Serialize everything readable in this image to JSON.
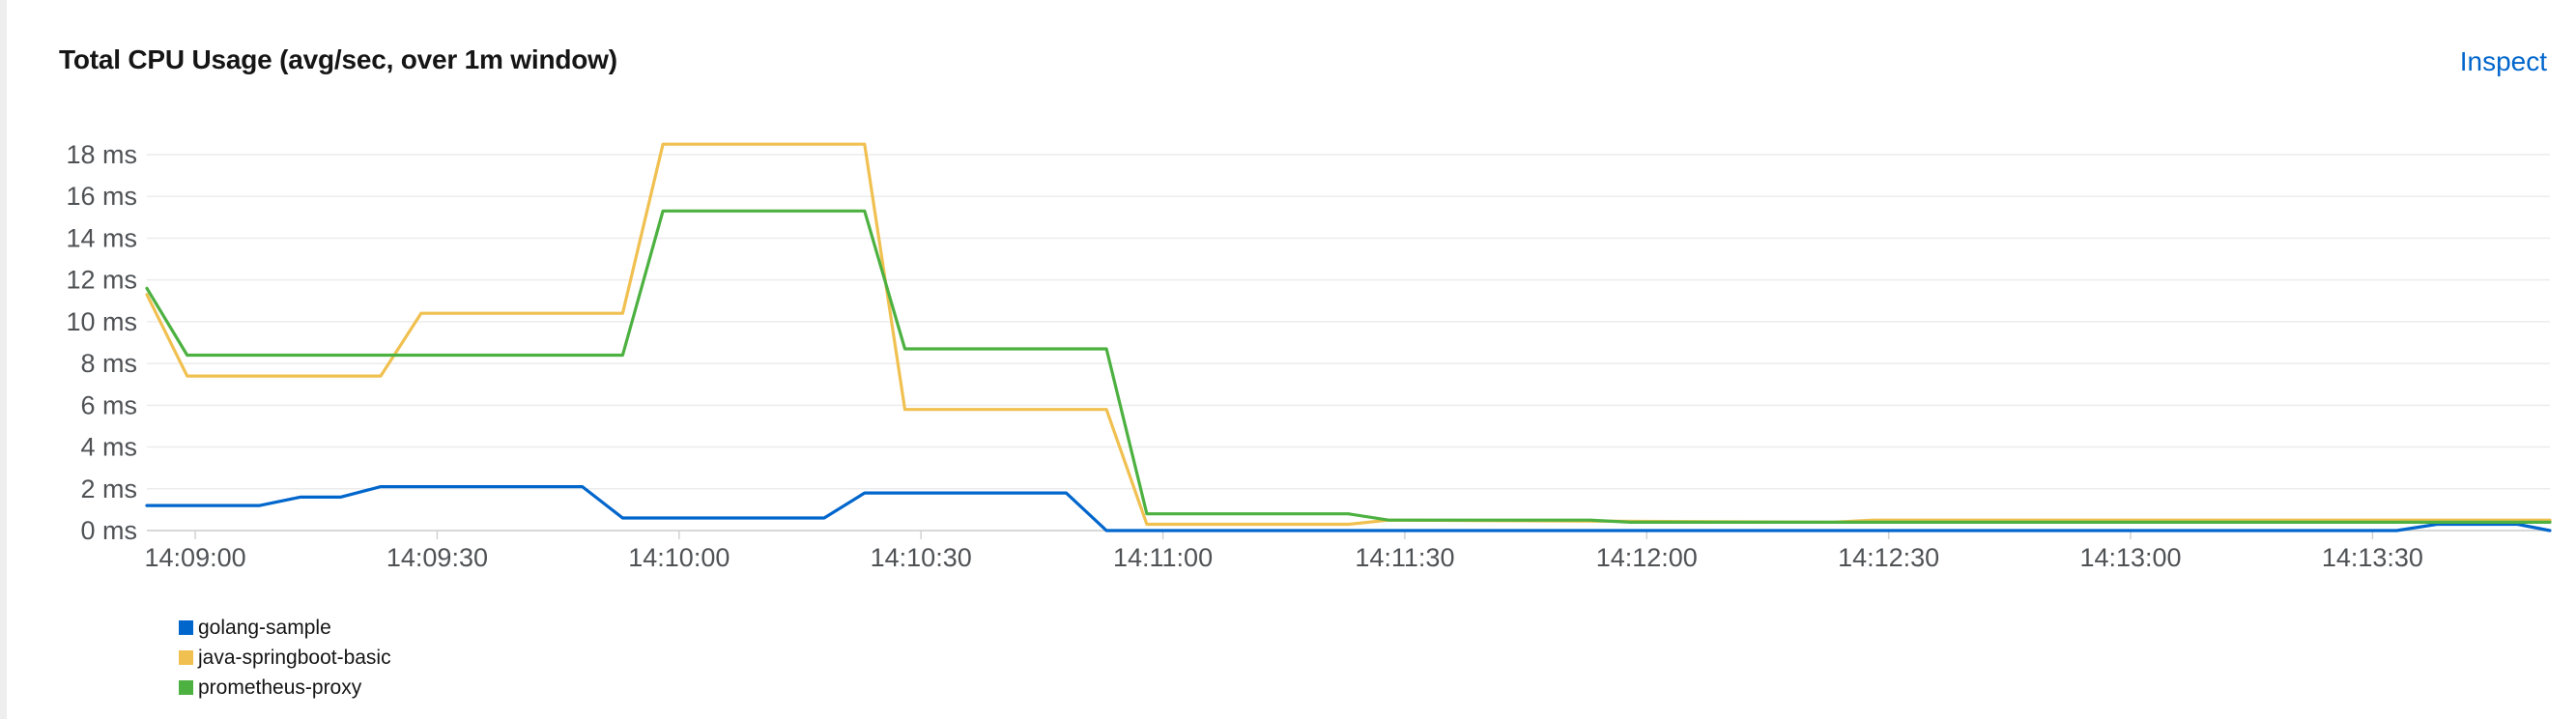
{
  "card": {
    "title": "Total CPU Usage (avg/sec, over 1m window)",
    "inspect_label": "Inspect"
  },
  "chart_data": {
    "type": "line",
    "title": "Total CPU Usage (avg/sec, over 1m window)",
    "xlabel": "",
    "ylabel": "",
    "x_ticks": [
      "14:09:00",
      "14:09:30",
      "14:10:00",
      "14:10:30",
      "14:11:00",
      "14:11:30",
      "14:12:00",
      "14:12:30",
      "14:13:00",
      "14:13:30"
    ],
    "y_ticks": [
      "0 ms",
      "2 ms",
      "4 ms",
      "6 ms",
      "8 ms",
      "10 ms",
      "12 ms",
      "14 ms",
      "16 ms",
      "18 ms"
    ],
    "xlim": [
      "14:08:54",
      "14:13:52"
    ],
    "ylim": [
      0,
      18
    ],
    "grid": true,
    "legend_position": "bottom-left",
    "series": [
      {
        "name": "golang-sample",
        "color": "#06c",
        "points": [
          [
            "14:08:54",
            1.2
          ],
          [
            "14:09:08",
            1.2
          ],
          [
            "14:09:13",
            1.6
          ],
          [
            "14:09:18",
            1.6
          ],
          [
            "14:09:23",
            2.1
          ],
          [
            "14:09:48",
            2.1
          ],
          [
            "14:09:53",
            0.6
          ],
          [
            "14:10:18",
            0.6
          ],
          [
            "14:10:23",
            1.8
          ],
          [
            "14:10:48",
            1.8
          ],
          [
            "14:10:53",
            0.0
          ],
          [
            "14:13:33",
            0.0
          ],
          [
            "14:13:38",
            0.3
          ],
          [
            "14:13:48",
            0.3
          ],
          [
            "14:13:52",
            0.0
          ]
        ]
      },
      {
        "name": "java-springboot-basic",
        "color": "#f0c050",
        "points": [
          [
            "14:08:54",
            11.3
          ],
          [
            "14:08:59",
            7.4
          ],
          [
            "14:09:23",
            7.4
          ],
          [
            "14:09:28",
            10.4
          ],
          [
            "14:09:53",
            10.4
          ],
          [
            "14:09:58",
            18.5
          ],
          [
            "14:10:23",
            18.5
          ],
          [
            "14:10:28",
            5.8
          ],
          [
            "14:10:53",
            5.8
          ],
          [
            "14:10:58",
            0.3
          ],
          [
            "14:11:23",
            0.3
          ],
          [
            "14:11:28",
            0.5
          ],
          [
            "14:12:23",
            0.4
          ],
          [
            "14:12:28",
            0.5
          ],
          [
            "14:13:52",
            0.5
          ]
        ]
      },
      {
        "name": "prometheus-proxy",
        "color": "#4cb140",
        "points": [
          [
            "14:08:54",
            11.6
          ],
          [
            "14:08:59",
            8.4
          ],
          [
            "14:09:48",
            8.4
          ],
          [
            "14:09:53",
            8.4
          ],
          [
            "14:09:58",
            15.3
          ],
          [
            "14:10:23",
            15.3
          ],
          [
            "14:10:28",
            8.7
          ],
          [
            "14:10:53",
            8.7
          ],
          [
            "14:10:58",
            0.8
          ],
          [
            "14:11:23",
            0.8
          ],
          [
            "14:11:28",
            0.5
          ],
          [
            "14:11:53",
            0.5
          ],
          [
            "14:11:58",
            0.4
          ],
          [
            "14:12:58",
            0.4
          ],
          [
            "14:13:03",
            0.4
          ],
          [
            "14:13:52",
            0.4
          ]
        ]
      }
    ]
  }
}
